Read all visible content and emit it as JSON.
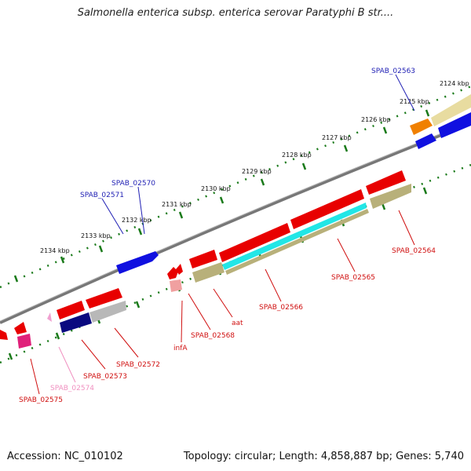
{
  "title": "Salmonella enterica subsp. enterica serovar Paratyphi B str....",
  "footer": {
    "accession": "Accession: NC_010102",
    "topology": "Topology: circular; Length: 4,858,887 bp; Genes: 5,740"
  },
  "colors": {
    "backbone": "#777777",
    "tick_green": "#1a7a1a",
    "label_blue": "#1f1fb4",
    "label_red": "#d01010",
    "label_pink": "#f090c0",
    "gene_red": "#e80000",
    "gene_blue": "#1010e0",
    "gene_navy": "#0a0a80",
    "gene_gray": "#b8b8b8",
    "gene_olive": "#b8b07a",
    "gene_cyan": "#22e6e6",
    "gene_orange": "#f08000",
    "gene_khaki": "#e8dca0",
    "gene_magenta": "#e0207a",
    "gene_pink": "#f0a0d0",
    "gene_salmon": "#f0a0a0"
  },
  "kbp_labels": [
    "2124 kbp",
    "2125 kbp",
    "2126 kbp",
    "2127 kbp",
    "2128 kbp",
    "2129 kbp",
    "2130 kbp",
    "2131 kbp",
    "2132 kbp",
    "2133 kbp",
    "2134 kbp"
  ],
  "gene_labels": [
    {
      "text": "SPAB_02563",
      "color": "blue"
    },
    {
      "text": "SPAB_02570",
      "color": "blue"
    },
    {
      "text": "SPAB_02571",
      "color": "blue"
    },
    {
      "text": "SPAB_02564",
      "color": "red"
    },
    {
      "text": "SPAB_02565",
      "color": "red"
    },
    {
      "text": "SPAB_02566",
      "color": "red"
    },
    {
      "text": "aat",
      "color": "red"
    },
    {
      "text": "SPAB_02568",
      "color": "red"
    },
    {
      "text": "infA",
      "color": "red"
    },
    {
      "text": "SPAB_02572",
      "color": "red"
    },
    {
      "text": "SPAB_02573",
      "color": "red"
    },
    {
      "text": "SPAB_02574",
      "color": "pink"
    },
    {
      "text": "SPAB_02575",
      "color": "red"
    }
  ]
}
